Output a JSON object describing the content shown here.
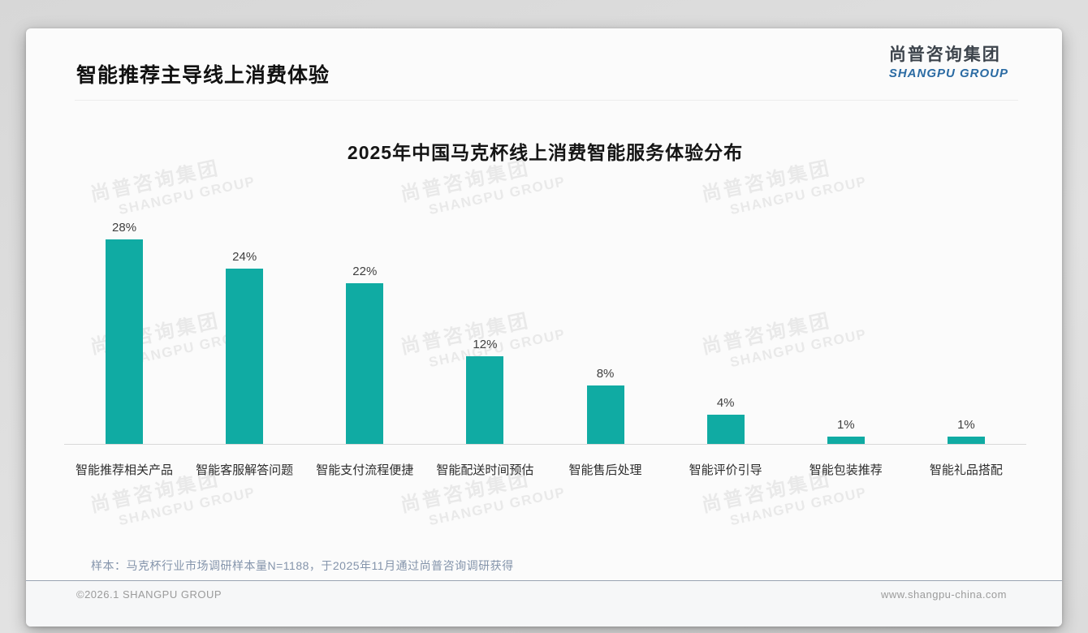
{
  "header": {
    "title": "智能推荐主导线上消费体验"
  },
  "logo": {
    "cn": "尚普咨询集团",
    "en": "SHANGPU GROUP"
  },
  "watermark": {
    "cn": "尚普咨询集团",
    "en": "SHANGPU GROUP"
  },
  "chart_data": {
    "type": "bar",
    "title": "2025年中国马克杯线上消费智能服务体验分布",
    "categories": [
      "智能推荐相关产品",
      "智能客服解答问题",
      "智能支付流程便捷",
      "智能配送时间预估",
      "智能售后处理",
      "智能评价引导",
      "智能包装推荐",
      "智能礼品搭配"
    ],
    "values": [
      28,
      24,
      22,
      12,
      8,
      4,
      1,
      1
    ],
    "data_labels": [
      "28%",
      "24%",
      "22%",
      "12%",
      "8%",
      "4%",
      "1%",
      "1%"
    ],
    "unit": "%",
    "ylim": [
      0,
      30
    ],
    "bar_color": "#10aba3",
    "grid": false,
    "legend": false,
    "xlabel": "",
    "ylabel": ""
  },
  "note": {
    "text": "样本：马克杯行业市场调研样本量N=1188，于2025年11月通过尚普咨询调研获得"
  },
  "footer": {
    "left": "©2026.1 SHANGPU GROUP",
    "right": "www.shangpu-china.com"
  },
  "colors": {
    "bar": "#10aba3",
    "logo_blue": "#2b6ba3",
    "logo_dark": "#3d444c",
    "note_text": "#8494ab",
    "axis_line": "#d9d9d9",
    "footer_text": "#9b9b9b"
  }
}
